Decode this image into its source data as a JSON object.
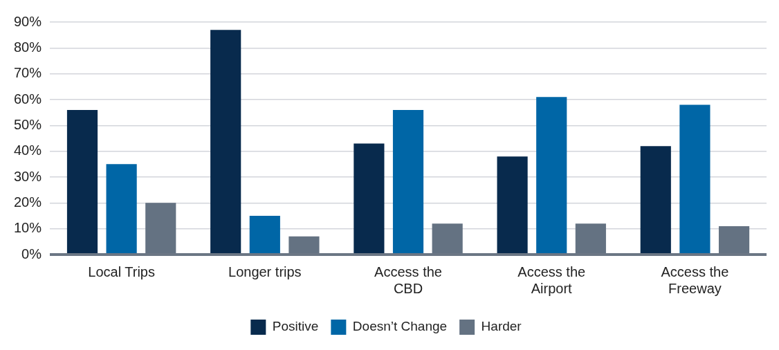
{
  "chart_data": {
    "type": "bar",
    "categories": [
      "Local Trips",
      "Longer trips",
      "Access the CBD",
      "Access the Airport",
      "Access the Freeway"
    ],
    "series": [
      {
        "name": "Positive",
        "color": "#082a4d",
        "values": [
          56,
          87,
          43,
          38,
          42
        ]
      },
      {
        "name": "Doesn’t Change",
        "color": "#0066a6",
        "values": [
          35,
          15,
          56,
          61,
          58
        ]
      },
      {
        "name": "Harder",
        "color": "#647282",
        "values": [
          20,
          7,
          12,
          12,
          11
        ]
      }
    ],
    "ylim": [
      0,
      90
    ],
    "yticks": [
      {
        "value": 0,
        "label": "0%"
      },
      {
        "value": 10,
        "label": "10%"
      },
      {
        "value": 20,
        "label": "20%"
      },
      {
        "value": 30,
        "label": "30%"
      },
      {
        "value": 40,
        "label": "40%"
      },
      {
        "value": 50,
        "label": "50%"
      },
      {
        "value": 60,
        "label": "60%"
      },
      {
        "value": 70,
        "label": "70%"
      },
      {
        "value": 80,
        "label": "80%"
      },
      {
        "value": 90,
        "label": "90%"
      }
    ],
    "grid": "y",
    "legend": "bottom"
  }
}
